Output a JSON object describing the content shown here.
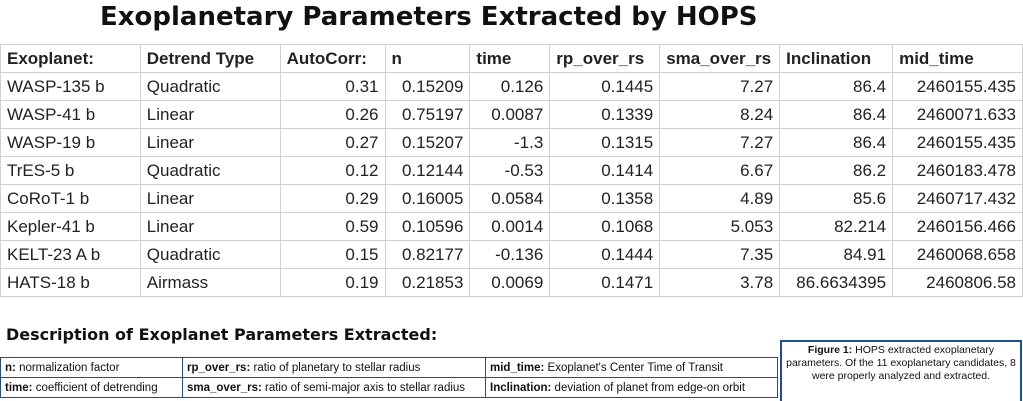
{
  "title": "Exoplanetary Parameters Extracted by HOPS",
  "table": {
    "header": [
      "Exoplanet:",
      "Detrend Type",
      "AutoCorr:",
      "n",
      "time",
      "rp_over_rs",
      "sma_over_rs",
      "Inclination",
      "mid_time"
    ],
    "rows": [
      [
        "WASP-135 b",
        "Quadratic",
        "0.31",
        "0.15209",
        "0.126",
        "0.1445",
        "7.27",
        "86.4",
        "2460155.435"
      ],
      [
        "WASP-41 b",
        "Linear",
        "0.26",
        "0.75197",
        "0.0087",
        "0.1339",
        "8.24",
        "86.4",
        "2460071.633"
      ],
      [
        "WASP-19 b",
        "Linear",
        "0.27",
        "0.15207",
        "-1.3",
        "0.1315",
        "7.27",
        "86.4",
        "2460155.435"
      ],
      [
        "TrES-5 b",
        "Quadratic",
        "0.12",
        "0.12144",
        "-0.53",
        "0.1414",
        "6.67",
        "86.2",
        "2460183.478"
      ],
      [
        "CoRoT-1 b",
        "Linear",
        "0.29",
        "0.16005",
        "0.0584",
        "0.1358",
        "4.89",
        "85.6",
        "2460717.432"
      ],
      [
        "Kepler-41 b",
        "Linear",
        "0.59",
        "0.10596",
        "0.0014",
        "0.1068",
        "5.053",
        "82.214",
        "2460156.466"
      ],
      [
        "KELT-23 A b",
        "Quadratic",
        "0.15",
        "0.82177",
        "-0.136",
        "0.1444",
        "7.35",
        "84.91",
        "2460068.658"
      ],
      [
        "HATS-18 b",
        "Airmass",
        "0.19",
        "0.21853",
        "0.0069",
        "0.1471",
        "3.78",
        "86.6634395",
        "2460806.58"
      ]
    ]
  },
  "description": {
    "heading": "Description of Exoplanet Parameters Extracted:",
    "items": [
      {
        "term": "n:",
        "text": "normalization factor"
      },
      {
        "term": "rp_over_rs:",
        "text": "ratio of planetary to stellar radius"
      },
      {
        "term": "mid_time:",
        "text": "Exoplanet's Center Time of Transit"
      },
      {
        "term": "time:",
        "text": "coefficient of detrending"
      },
      {
        "term": "sma_over_rs:",
        "text": "ratio of semi-major axis to stellar radius"
      },
      {
        "term": "Inclination:",
        "text": "deviation of planet from edge-on orbit"
      }
    ]
  },
  "figure": {
    "label": "Figure 1:",
    "text": "HOPS extracted exoplanetary parameters. Of the 11 exoplanetary candidates, 8 were properly analyzed and extracted."
  }
}
